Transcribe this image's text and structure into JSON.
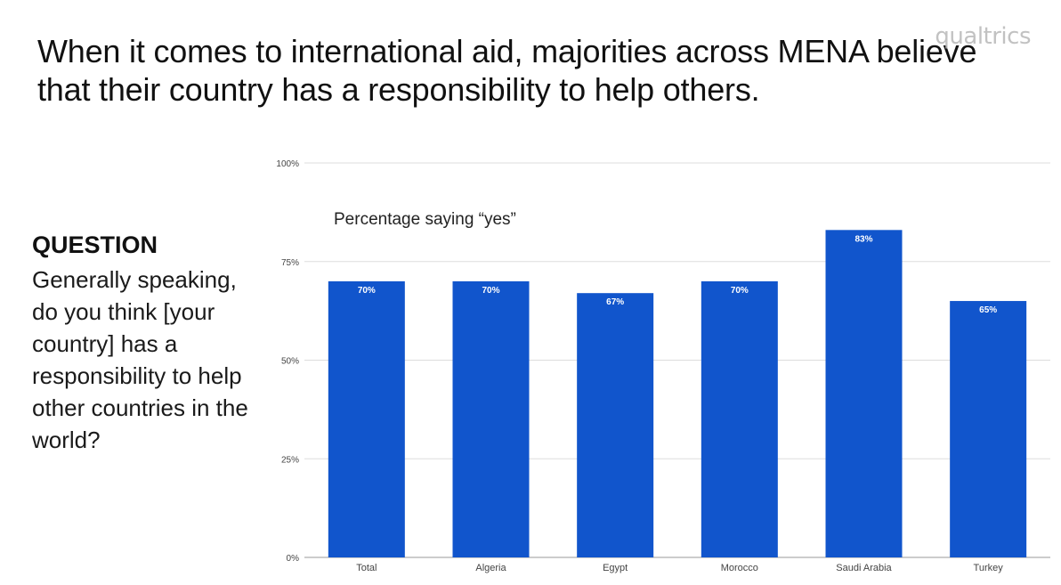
{
  "title": "When it comes to international aid, majorities across MENA believe that their country has a responsibility to help others.",
  "logo_text": "qualtrics",
  "question": {
    "heading": "QUESTION",
    "text": "Generally speaking, do you think [your country] has a responsibility to help other countries in the world?"
  },
  "chart_data": {
    "type": "bar",
    "title": "Percentage saying “yes”",
    "categories": [
      "Total",
      "Algeria",
      "Egypt",
      "Morocco",
      "Saudi Arabia",
      "Turkey"
    ],
    "values": [
      70,
      70,
      67,
      70,
      83,
      65
    ],
    "data_labels": [
      "70%",
      "70%",
      "67%",
      "70%",
      "83%",
      "65%"
    ],
    "ylim": [
      0,
      100
    ],
    "yticks": [
      0,
      25,
      50,
      75,
      100
    ],
    "ytick_labels": [
      "0%",
      "25%",
      "50%",
      "75%",
      "100%"
    ],
    "xlabel": "",
    "ylabel": "",
    "grid": true,
    "bar_color": "#1155cc",
    "grid_color": "#dddddd"
  }
}
